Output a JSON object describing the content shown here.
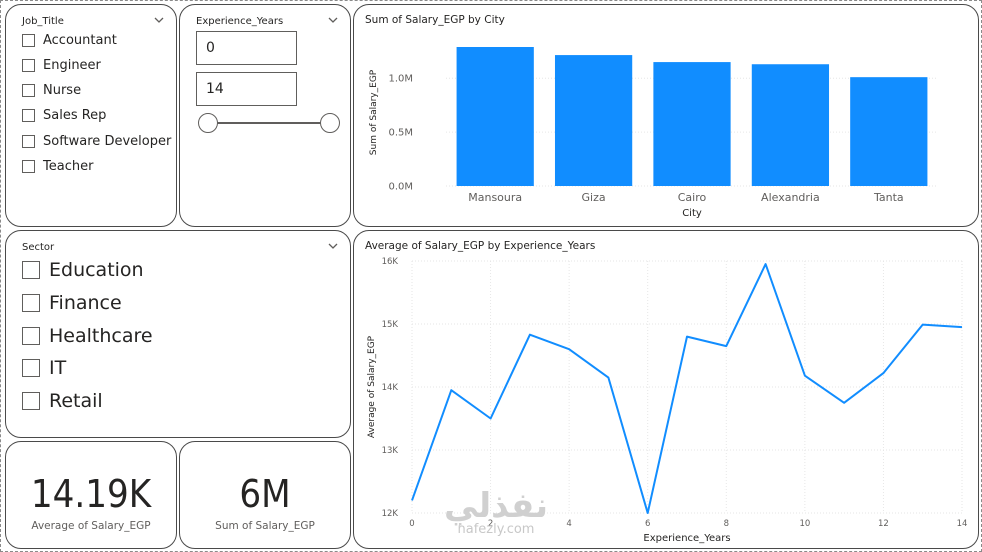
{
  "job_title_slicer": {
    "title": "Job_Title",
    "options": [
      "Accountant",
      "Engineer",
      "Nurse",
      "Sales Rep",
      "Software Developer",
      "Teacher"
    ]
  },
  "experience_slicer": {
    "title": "Experience_Years",
    "min_value": "0",
    "max_value": "14",
    "range_min": 0,
    "range_max": 14
  },
  "sector_slicer": {
    "title": "Sector",
    "options": [
      "Education",
      "Finance",
      "Healthcare",
      "IT",
      "Retail"
    ]
  },
  "kpi_avg": {
    "value": "14.19K",
    "label": "Average of Salary_EGP"
  },
  "kpi_sum": {
    "value": "6M",
    "label": "Sum of Salary_EGP"
  },
  "watermark": {
    "arabic": "نفذلي",
    "latin": "nafezly.com"
  },
  "colors": {
    "accent": "#118DFF",
    "border": "#4a4a4a",
    "grid": "#e6e6e6",
    "axis_text": "#605e5c"
  },
  "chart_data": [
    {
      "type": "bar",
      "title": "Sum of Salary_EGP by City",
      "xlabel": "City",
      "ylabel": "Sum of Salary_EGP",
      "categories": [
        "Mansoura",
        "Giza",
        "Cairo",
        "Alexandria",
        "Tanta"
      ],
      "values": [
        1290000,
        1215000,
        1150000,
        1130000,
        1010000
      ],
      "ylim": [
        0,
        1290000
      ],
      "yticks": [
        0,
        500000,
        1000000
      ],
      "ytick_labels": [
        "0.0M",
        "0.5M",
        "1.0M"
      ],
      "grid": true
    },
    {
      "type": "line",
      "title": "Average of Salary_EGP by Experience_Years",
      "xlabel": "Experience_Years",
      "ylabel": "Average of Salary_EGP",
      "x": [
        0,
        1,
        2,
        3,
        4,
        5,
        6,
        7,
        8,
        9,
        10,
        11,
        12,
        13,
        14
      ],
      "values": [
        12200,
        13950,
        13500,
        14830,
        14600,
        14150,
        12000,
        14800,
        14650,
        15950,
        14180,
        13750,
        14220,
        14990,
        14950
      ],
      "xlim": [
        0,
        14
      ],
      "ylim": [
        12000,
        16000
      ],
      "xticks": [
        0,
        2,
        4,
        6,
        8,
        10,
        12,
        14
      ],
      "xtick_labels": [
        "0",
        "2",
        "4",
        "6",
        "8",
        "10",
        "12",
        "14"
      ],
      "yticks": [
        12000,
        13000,
        14000,
        15000,
        16000
      ],
      "ytick_labels": [
        "12K",
        "13K",
        "14K",
        "15K",
        "16K"
      ],
      "grid": true
    }
  ]
}
